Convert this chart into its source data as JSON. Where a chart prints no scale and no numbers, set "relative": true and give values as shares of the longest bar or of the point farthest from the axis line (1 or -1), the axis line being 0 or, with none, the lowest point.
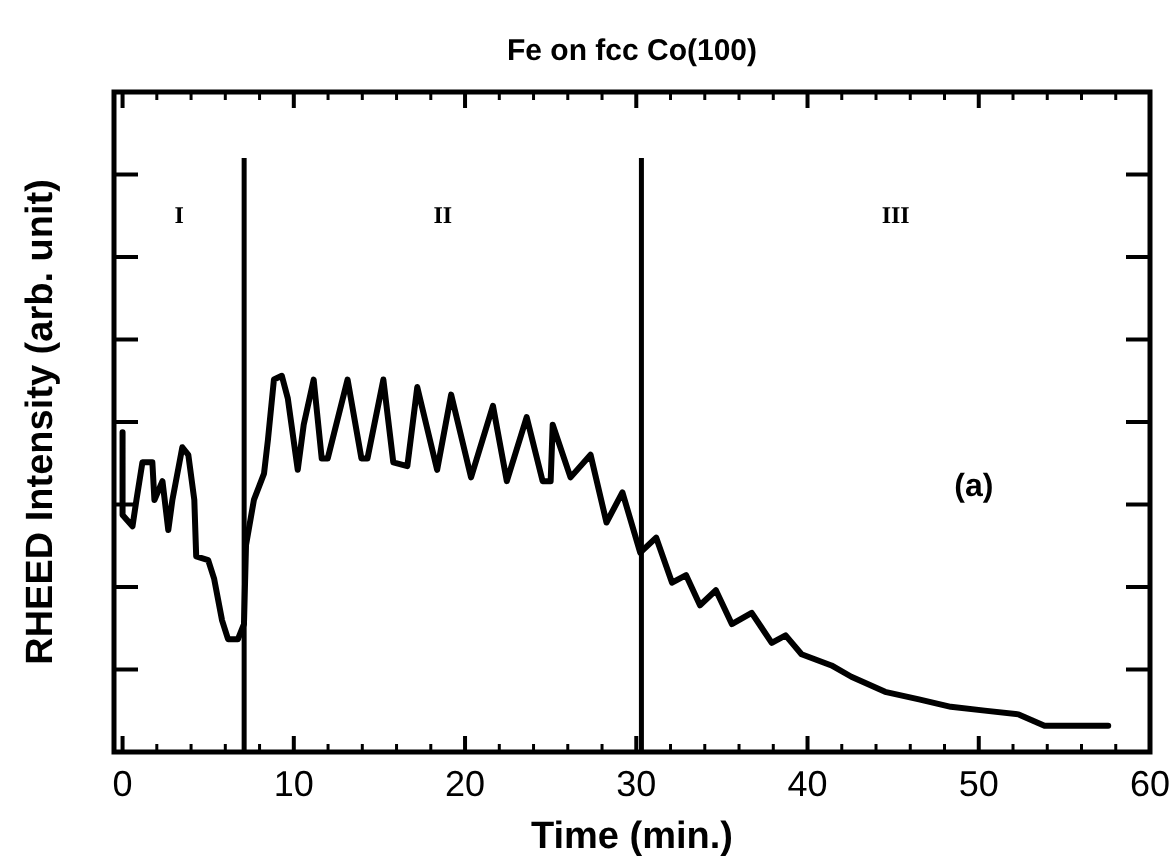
{
  "chart_data": {
    "type": "line",
    "title": "Fe on fcc Co(100)",
    "xlabel": "Time (min.)",
    "ylabel": "RHEED Intensity (arb. unit)",
    "relative": true,
    "color": "#000000",
    "xlim": [
      -0.5,
      60
    ],
    "xticks": [
      0,
      10,
      20,
      30,
      40,
      50,
      60
    ],
    "x": [
      0,
      0,
      0.58,
      0.81,
      1.16,
      1.74,
      1.86,
      2.33,
      2.67,
      2.91,
      3.49,
      3.84,
      4.19,
      4.3,
      5.0,
      5.35,
      5.81,
      6.16,
      6.74,
      7.09,
      7.21,
      7.67,
      8.26,
      8.49,
      8.84,
      9.3,
      9.65,
      10.23,
      10.58,
      11.16,
      11.63,
      11.98,
      13.14,
      13.95,
      14.3,
      15.23,
      15.81,
      16.63,
      17.21,
      18.37,
      19.19,
      20.35,
      21.63,
      22.44,
      23.6,
      24.53,
      25.0,
      25.12,
      26.16,
      27.33,
      28.26,
      29.19,
      30.23,
      31.16,
      32.09,
      32.91,
      33.72,
      34.65,
      35.58,
      36.74,
      37.91,
      38.72,
      39.65,
      41.4,
      42.56,
      44.53,
      46.51,
      48.37,
      50.35,
      52.33,
      53.84,
      57.56
    ],
    "values": [
      0.85,
      0.63,
      0.6,
      0.67,
      0.77,
      0.77,
      0.67,
      0.72,
      0.59,
      0.67,
      0.81,
      0.79,
      0.67,
      0.52,
      0.51,
      0.46,
      0.35,
      0.3,
      0.3,
      0.34,
      0.55,
      0.67,
      0.74,
      0.83,
      0.99,
      1.0,
      0.94,
      0.75,
      0.87,
      0.99,
      0.78,
      0.78,
      0.99,
      0.78,
      0.78,
      0.99,
      0.77,
      0.76,
      0.97,
      0.75,
      0.95,
      0.73,
      0.92,
      0.72,
      0.89,
      0.72,
      0.72,
      0.87,
      0.73,
      0.79,
      0.61,
      0.69,
      0.53,
      0.57,
      0.45,
      0.47,
      0.39,
      0.43,
      0.34,
      0.37,
      0.29,
      0.31,
      0.26,
      0.23,
      0.2,
      0.16,
      0.14,
      0.12,
      0.11,
      0.1,
      0.07,
      0.07
    ],
    "ref_lines": [
      {
        "axis": "x",
        "value": 7.1,
        "color": "#000000"
      },
      {
        "axis": "x",
        "value": 30.3,
        "color": "#000000"
      }
    ],
    "annotations": [
      "I",
      "II",
      "III",
      "(a)"
    ]
  }
}
